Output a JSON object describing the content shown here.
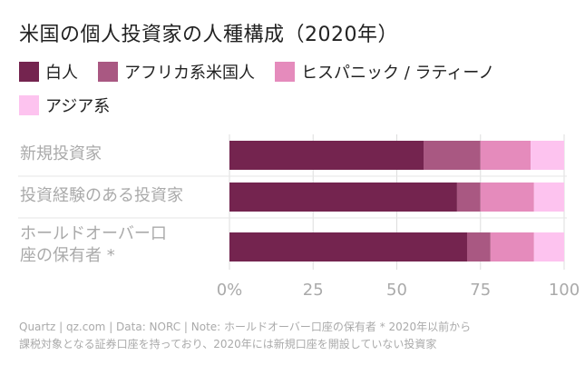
{
  "title": "米国の個人投資家の人種構成（2020年）",
  "colors": {
    "white": "#74244f",
    "african_american": "#a95882",
    "hispanic": "#e58bbc",
    "asian": "#fdc3ef",
    "gridline": "#dddddd",
    "tick_text": "#aaaaaa",
    "category_text": "#aaaaaa"
  },
  "chart_data": {
    "type": "bar",
    "orientation": "horizontal",
    "stacked": true,
    "title": "米国の個人投資家の人種構成（2020年）",
    "categories": [
      "新規投資家",
      "投資経験のある投資家",
      "ホールドオーバー口座の保有者 *"
    ],
    "series": [
      {
        "name": "白人",
        "color": "#74244f",
        "values": [
          58,
          68,
          71
        ]
      },
      {
        "name": "アフリカ系米国人",
        "color": "#a95882",
        "values": [
          17,
          7,
          7
        ]
      },
      {
        "name": "ヒスパニック / ラティーノ",
        "color": "#e58bbc",
        "values": [
          15,
          16,
          13
        ]
      },
      {
        "name": "アジア系",
        "color": "#fdc3ef",
        "values": [
          10,
          9,
          9
        ]
      }
    ],
    "xlim": [
      0,
      100
    ],
    "xticks": [
      0,
      25,
      50,
      75,
      100
    ],
    "xtick_labels": [
      "0%",
      "25",
      "50",
      "75",
      "100"
    ],
    "xlabel": "",
    "ylabel": "",
    "grid": true,
    "legend_position": "top"
  },
  "footer": {
    "line1": "Quartz | qz.com | Data: NORC | Note: ホールドオーバー口座の保有者 * 2020年以前から",
    "line2": "課税対象となる証券口座を持っており、2020年には新規口座を開設していない投資家"
  }
}
